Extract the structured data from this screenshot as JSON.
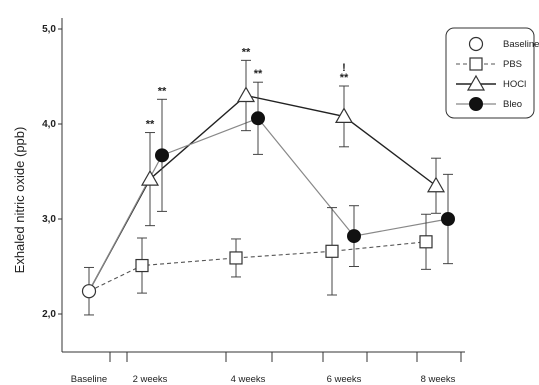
{
  "chart_data": {
    "type": "line",
    "title": "",
    "xlabel": "",
    "ylabel": "Exhaled nitric oxide (ppb)",
    "ylim": [
      2.0,
      5.0
    ],
    "yticks": [
      "2,0",
      "3,0",
      "4,0",
      "5,0"
    ],
    "xtick_labels": [
      "Baseline",
      "2 weeks",
      "4 weeks",
      "6 weeks",
      "8 weeks"
    ],
    "grid": false,
    "legend_position": "top-right",
    "legend": [
      "Baseline",
      "PBS",
      "HOCl",
      "Bleo"
    ],
    "series": [
      {
        "name": "Baseline",
        "marker": "open-circle",
        "line": "none",
        "points": [
          {
            "x": "Baseline",
            "y": 2.24,
            "err": 0.25
          }
        ]
      },
      {
        "name": "PBS",
        "marker": "open-square",
        "line": "dashed",
        "points": [
          {
            "x": "Baseline",
            "y": 2.24
          },
          {
            "x": "2 weeks",
            "y": 2.51,
            "err": 0.29
          },
          {
            "x": "4 weeks",
            "y": 2.59,
            "err": 0.2
          },
          {
            "x": "6 weeks",
            "y": 2.66,
            "err": 0.46
          },
          {
            "x": "8 weeks",
            "y": 2.76,
            "err": 0.29
          }
        ]
      },
      {
        "name": "HOCl",
        "marker": "open-triangle",
        "line": "solid",
        "points": [
          {
            "x": "Baseline",
            "y": 2.24
          },
          {
            "x": "2 weeks",
            "y": 3.42,
            "err": 0.49
          },
          {
            "x": "4 weeks",
            "y": 4.3,
            "err": 0.37
          },
          {
            "x": "6 weeks",
            "y": 4.08,
            "err": 0.32
          },
          {
            "x": "8 weeks",
            "y": 3.35,
            "err": 0.29
          }
        ]
      },
      {
        "name": "Bleo",
        "marker": "filled-circle",
        "line": "solid-gray",
        "points": [
          {
            "x": "Baseline",
            "y": 2.24
          },
          {
            "x": "2 weeks",
            "y": 3.67,
            "err": 0.59
          },
          {
            "x": "4 weeks",
            "y": 4.06,
            "err": 0.38
          },
          {
            "x": "6 weeks",
            "y": 2.82,
            "err": 0.32
          },
          {
            "x": "8 weeks",
            "y": 3.0,
            "err": 0.47
          }
        ]
      }
    ],
    "annotations": [
      {
        "text": "**",
        "x": "2 weeks",
        "series": "HOCl"
      },
      {
        "text": "**",
        "x": "2 weeks",
        "series": "Bleo"
      },
      {
        "text": "**",
        "x": "4 weeks",
        "series": "HOCl"
      },
      {
        "text": "**",
        "x": "4 weeks",
        "series": "Bleo"
      },
      {
        "text": "**",
        "x": "6 weeks",
        "series": "HOCl"
      },
      {
        "text": "!",
        "x": "6 weeks",
        "series": "HOCl"
      }
    ]
  }
}
